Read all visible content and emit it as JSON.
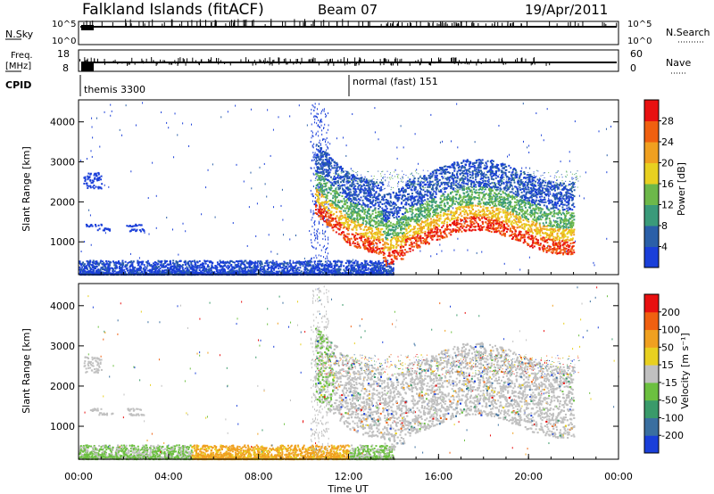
{
  "header": {
    "station": "Falkland Islands (fitACF)",
    "beam": "Beam 07",
    "date": "19/Apr/2011"
  },
  "strips": {
    "nsky": {
      "label": "N.Sky",
      "ticks": [
        "10^5",
        "10^0"
      ],
      "right_label": "N.Search",
      "right_ticks": [
        "10^5",
        "10^0"
      ]
    },
    "freq": {
      "label_line1": "Freq.",
      "label_line2": "[MHz]",
      "ticks": [
        "18",
        "8"
      ],
      "right_label": "Nave",
      "right_ticks": [
        "60",
        "0"
      ]
    },
    "cpid": {
      "label": "CPID",
      "segments": [
        {
          "name": "themis 3300",
          "start_hour": 0
        },
        {
          "name": "normal (fast) 151",
          "start_hour": 12
        }
      ]
    }
  },
  "chart_data": [
    {
      "type": "heatmap",
      "panel": "power",
      "ylabel": "Slant Range [km]",
      "yticks": [
        1000,
        2000,
        3000,
        4000
      ],
      "ylim": [
        180,
        4550
      ],
      "xlim": [
        0,
        24
      ],
      "colorbar": {
        "label": "Power [dB]",
        "ticks": [
          4,
          8,
          12,
          16,
          20,
          24,
          28
        ],
        "colors": [
          "#1a3fd9",
          "#2a5fa8",
          "#3a9a7a",
          "#6db84a",
          "#e8d020",
          "#f0a020",
          "#f06010",
          "#e81010"
        ]
      }
    },
    {
      "type": "heatmap",
      "panel": "velocity",
      "ylabel": "Slant Range [km]",
      "yticks": [
        1000,
        2000,
        3000,
        4000
      ],
      "ylim": [
        180,
        4550
      ],
      "xlim": [
        0,
        24
      ],
      "xlabel": "Time UT",
      "xticks": [
        "00:00",
        "04:00",
        "08:00",
        "12:00",
        "16:00",
        "20:00",
        "00:00"
      ],
      "colorbar": {
        "label": "Velocity [m s⁻¹]",
        "ticks": [
          200,
          100,
          50,
          15,
          -15,
          -50,
          -100,
          -200
        ],
        "colors": [
          "#1a3fd9",
          "#3a6fa0",
          "#3a9a6a",
          "#6cc040",
          "#c0c0c0",
          "#e8d020",
          "#f0a020",
          "#f06010",
          "#e81010"
        ]
      }
    }
  ]
}
